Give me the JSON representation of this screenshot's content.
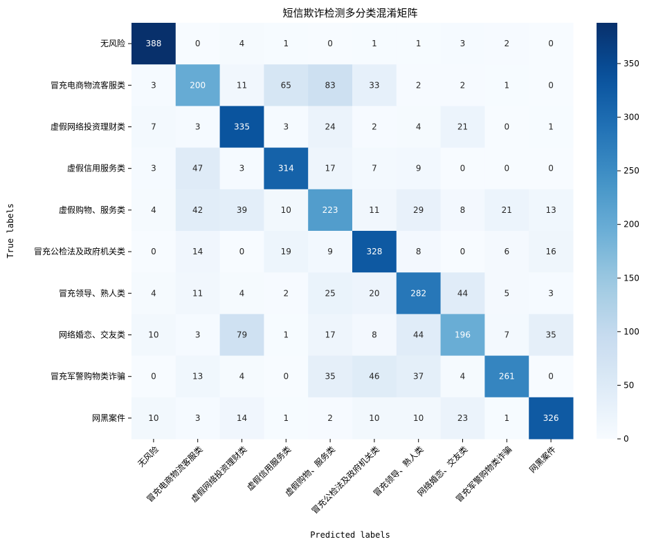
{
  "chart_data": {
    "type": "heatmap",
    "title": "短信欺诈检测多分类混淆矩阵",
    "xlabel": "Predicted labels",
    "ylabel": "True labels",
    "x_categories": [
      "无风险",
      "冒充电商物流客服类",
      "虚假网络投资理财类",
      "虚假信用服务类",
      "虚假购物、服务类",
      "冒充公检法及政府机关类",
      "冒充领导、熟人类",
      "网络婚恋、交友类",
      "冒充军警购物类诈骗",
      "网黑案件"
    ],
    "y_categories": [
      "无风险",
      "冒充电商物流客服类",
      "虚假网络投资理财类",
      "虚假信用服务类",
      "虚假购物、服务类",
      "冒充公检法及政府机关类",
      "冒充领导、熟人类",
      "网络婚恋、交友类",
      "冒充军警购物类诈骗",
      "网黑案件"
    ],
    "values": [
      [
        388,
        0,
        4,
        1,
        0,
        1,
        1,
        3,
        2,
        0
      ],
      [
        3,
        200,
        11,
        65,
        83,
        33,
        2,
        2,
        1,
        0
      ],
      [
        7,
        3,
        335,
        3,
        24,
        2,
        4,
        21,
        0,
        1
      ],
      [
        3,
        47,
        3,
        314,
        17,
        7,
        9,
        0,
        0,
        0
      ],
      [
        4,
        42,
        39,
        10,
        223,
        11,
        29,
        8,
        21,
        13
      ],
      [
        0,
        14,
        0,
        19,
        9,
        328,
        8,
        0,
        6,
        16
      ],
      [
        4,
        11,
        4,
        2,
        25,
        20,
        282,
        44,
        5,
        3
      ],
      [
        10,
        3,
        79,
        1,
        17,
        8,
        44,
        196,
        7,
        35
      ],
      [
        0,
        13,
        4,
        0,
        35,
        46,
        37,
        4,
        261,
        0
      ],
      [
        10,
        3,
        14,
        1,
        2,
        10,
        10,
        23,
        1,
        326
      ]
    ],
    "colormap": "Blues",
    "vmin": 0,
    "vmax": 388,
    "colorbar_ticks": [
      "0",
      "50",
      "100",
      "150",
      "200",
      "250",
      "300",
      "350"
    ],
    "colorbar_tick_values": [
      0,
      50,
      100,
      150,
      200,
      250,
      300,
      350
    ]
  }
}
